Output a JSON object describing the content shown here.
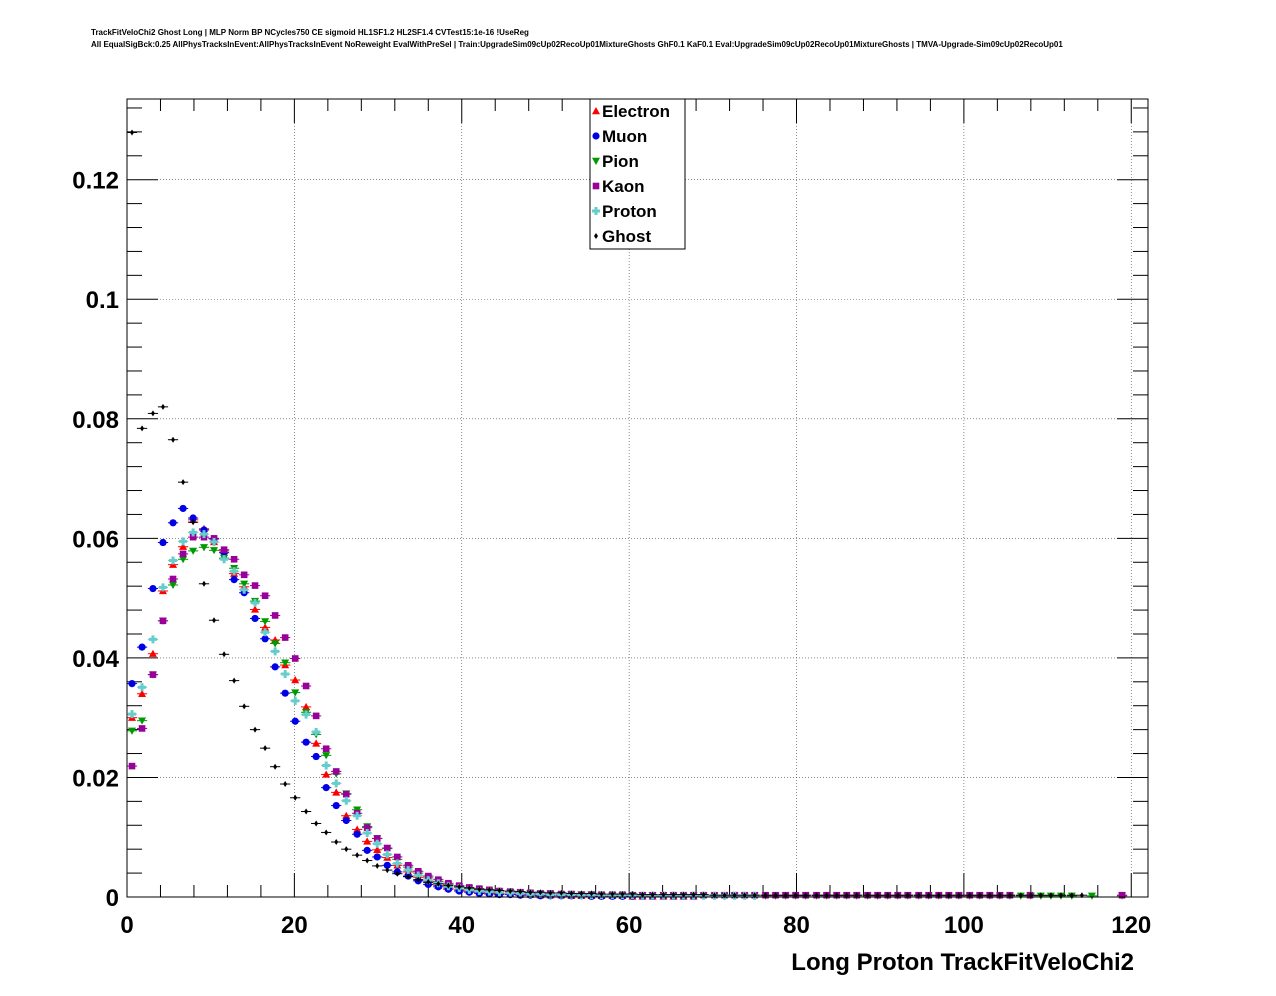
{
  "header": {
    "title_line1": "TrackFitVeloChi2 Ghost Long | MLP Norm BP NCycles750 CE sigmoid HL1SF1.2 HL2SF1.4 CVTest15:1e-16 !UseReg",
    "title_line2": "All EqualSigBck:0.25 AllPhysTracksInEvent:AllPhysTracksInEvent NoReweight EvalWithPreSel | Train:UpgradeSim09cUp02RecoUp01MixtureGhosts GhF0.1 KaF0.1 Eval:UpgradeSim09cUp02RecoUp01MixtureGhosts | TMVA-Upgrade-Sim09cUp02RecoUp01"
  },
  "chart_data": {
    "type": "scatter",
    "xlabel": "Long Proton TrackFitVeloChi2",
    "ylabel": "",
    "xlim": [
      0,
      122
    ],
    "ylim": [
      0,
      0.1335
    ],
    "x_ticks": [
      0,
      20,
      40,
      60,
      80,
      100,
      120
    ],
    "x_tick_labels": [
      "0",
      "20",
      "40",
      "60",
      "80",
      "100",
      "120"
    ],
    "y_ticks": [
      0,
      0.02,
      0.04,
      0.06,
      0.08,
      0.1,
      0.12
    ],
    "y_tick_labels": [
      "0",
      "0.02",
      "0.04",
      "0.06",
      "0.08",
      "0.1",
      "0.12"
    ],
    "grid": true,
    "legend_position": "top-center",
    "series": [
      {
        "name": "Electron",
        "color": "#ff0000",
        "marker": "triangle-up",
        "x": [
          0.6,
          1.8,
          3.1,
          4.3,
          5.5,
          6.7,
          7.9,
          9.2,
          10.4,
          11.6,
          12.8,
          14.0,
          15.3,
          16.5,
          17.7,
          18.9,
          20.1,
          21.4,
          22.6,
          23.8,
          25.0,
          26.2,
          27.5,
          28.7,
          29.9,
          31.1,
          32.3,
          33.6,
          34.8,
          36.0,
          37.2,
          38.4,
          39.7,
          40.9,
          42.1,
          43.3,
          44.5,
          45.8,
          47.0,
          48.2,
          49.4,
          50.6,
          51.9,
          53.1,
          54.3,
          55.5,
          56.7,
          58.0,
          59.2,
          60.4,
          61.6,
          62.8,
          64.1,
          65.3,
          66.5,
          67.7
        ],
        "y": [
          0.03,
          0.034,
          0.0407,
          0.0512,
          0.0556,
          0.0586,
          0.0631,
          0.0616,
          0.0594,
          0.0579,
          0.0541,
          0.0519,
          0.0481,
          0.0451,
          0.043,
          0.0388,
          0.0363,
          0.0318,
          0.0257,
          0.0205,
          0.0175,
          0.0136,
          0.0113,
          0.0093,
          0.0079,
          0.0066,
          0.0053,
          0.0042,
          0.0033,
          0.0024,
          0.0019,
          0.0015,
          0.0012,
          0.001,
          0.0008,
          0.0007,
          0.0006,
          0.0005,
          0.0004,
          0.0004,
          0.0003,
          0.0003,
          0.0003,
          0.0002,
          0.0002,
          0.0002,
          0.0002,
          0.0002,
          0.0002,
          0.0001,
          0.0001,
          0.0001,
          0.0001,
          0.0001,
          0.0001,
          0.0001
        ]
      },
      {
        "name": "Muon",
        "color": "#0000e6",
        "marker": "circle",
        "x": [
          0.6,
          1.8,
          3.1,
          4.3,
          5.5,
          6.7,
          7.9,
          9.2,
          10.4,
          11.6,
          12.8,
          14.0,
          15.3,
          16.5,
          17.7,
          18.9,
          20.1,
          21.4,
          22.6,
          23.8,
          25.0,
          26.2,
          27.5,
          28.7,
          29.9,
          31.1,
          32.3,
          33.6,
          34.8,
          36.0,
          37.2,
          38.4,
          39.7,
          40.9,
          42.1,
          43.3,
          44.5,
          45.8,
          47.0,
          48.2,
          49.4,
          50.6,
          51.9,
          53.1,
          54.3,
          55.5,
          56.7,
          58.0,
          59.2,
          60.4,
          61.6,
          62.8,
          64.1,
          65.3,
          66.5,
          67.7
        ],
        "y": [
          0.0357,
          0.0418,
          0.0516,
          0.0593,
          0.0626,
          0.065,
          0.0634,
          0.0614,
          0.0599,
          0.0576,
          0.0531,
          0.0509,
          0.0466,
          0.0432,
          0.0385,
          0.0341,
          0.0294,
          0.0259,
          0.0235,
          0.0183,
          0.0153,
          0.0128,
          0.0105,
          0.0078,
          0.0067,
          0.0053,
          0.0042,
          0.0035,
          0.0027,
          0.0021,
          0.0017,
          0.0013,
          0.001,
          0.0008,
          0.0006,
          0.0005,
          0.0004,
          0.0004,
          0.0003,
          0.0003,
          0.0002,
          0.0002,
          0.0002,
          0.0002,
          0.0002,
          0.0001,
          0.0001,
          0.0001,
          0.0001,
          0.0001,
          0.0001,
          0.0001,
          0.0001,
          0.0001,
          0.0001,
          0.0001
        ]
      },
      {
        "name": "Pion",
        "color": "#009900",
        "marker": "triangle-down",
        "x": [
          0.6,
          1.8,
          3.1,
          4.3,
          5.5,
          6.7,
          7.9,
          9.2,
          10.4,
          11.6,
          12.8,
          14.0,
          15.3,
          16.5,
          17.7,
          18.9,
          20.1,
          21.4,
          22.6,
          23.8,
          25.0,
          26.2,
          27.5,
          28.7,
          29.9,
          31.1,
          32.3,
          33.6,
          34.8,
          36.0,
          37.2,
          38.4,
          39.7,
          40.9,
          42.1,
          43.3,
          44.5,
          45.8,
          47.0,
          48.2,
          49.4,
          50.6,
          51.9,
          53.1,
          54.3,
          55.5,
          56.7,
          58.0,
          59.2,
          60.4,
          61.6,
          62.8,
          64.1,
          65.3,
          66.5,
          67.7,
          68.9,
          70.2,
          71.4,
          72.6,
          73.8,
          75.0,
          76.3,
          77.5,
          78.7,
          79.9,
          81.1,
          82.4,
          83.6,
          84.8,
          86.0,
          87.2,
          88.5,
          89.7,
          90.9,
          92.1,
          93.3,
          94.6,
          95.8,
          97.0,
          98.2,
          99.4,
          100.7,
          101.9,
          103.1,
          104.3,
          105.5,
          106.8,
          108.0,
          109.2,
          110.4,
          111.6,
          112.9,
          115.3,
          118.9
        ],
        "y": [
          0.0278,
          0.0295,
          0.0372,
          0.0462,
          0.0522,
          0.0565,
          0.0579,
          0.0585,
          0.058,
          0.0567,
          0.055,
          0.0524,
          0.0495,
          0.0461,
          0.0424,
          0.0392,
          0.0342,
          0.0309,
          0.0272,
          0.0237,
          0.0206,
          0.0173,
          0.0146,
          0.0118,
          0.0098,
          0.0081,
          0.0063,
          0.005,
          0.004,
          0.0032,
          0.0026,
          0.0021,
          0.0017,
          0.0014,
          0.0012,
          0.001,
          0.0009,
          0.0008,
          0.0007,
          0.0006,
          0.0005,
          0.0005,
          0.0004,
          0.0004,
          0.0004,
          0.0004,
          0.0003,
          0.0003,
          0.0003,
          0.0003,
          0.0003,
          0.0003,
          0.0003,
          0.0002,
          0.0002,
          0.0002,
          0.0002,
          0.0002,
          0.0002,
          0.0002,
          0.0002,
          0.0002,
          0.0002,
          0.0002,
          0.0002,
          0.0002,
          0.0002,
          0.0002,
          0.0002,
          0.0002,
          0.0002,
          0.0002,
          0.0002,
          0.0002,
          0.0002,
          0.0002,
          0.0002,
          0.0002,
          0.0002,
          0.0002,
          0.0002,
          0.0002,
          0.0002,
          0.0002,
          0.0002,
          0.0002,
          0.0002,
          0.0002,
          0.0002,
          0.0002,
          0.0002,
          0.0002,
          0.0002,
          0.0002,
          0.0002
        ]
      },
      {
        "name": "Kaon",
        "color": "#990099",
        "marker": "square",
        "x": [
          0.6,
          1.8,
          3.1,
          4.3,
          5.5,
          6.7,
          7.9,
          9.2,
          10.4,
          11.6,
          12.8,
          14.0,
          15.3,
          16.5,
          17.7,
          18.9,
          20.1,
          21.4,
          22.6,
          23.8,
          25.0,
          26.2,
          27.5,
          28.7,
          29.9,
          31.1,
          32.3,
          33.6,
          34.8,
          36.0,
          37.2,
          38.4,
          39.7,
          40.9,
          42.1,
          43.3,
          44.5,
          45.8,
          47.0,
          48.2,
          49.4,
          50.6,
          51.9,
          53.1,
          54.3,
          55.5,
          56.7,
          58.0,
          59.2,
          60.4,
          61.6,
          62.8,
          64.1,
          65.3,
          66.5,
          67.7,
          68.9,
          70.2,
          71.4,
          72.6,
          73.8,
          75.0,
          76.3,
          77.5,
          78.7,
          79.9,
          81.1,
          82.4,
          83.6,
          84.8,
          86.0,
          87.2,
          88.5,
          89.7,
          90.9,
          92.1,
          93.3,
          94.6,
          95.8,
          97.0,
          98.2,
          99.4,
          100.7,
          101.9,
          103.1,
          104.3,
          105.5,
          107.9,
          118.9
        ],
        "y": [
          0.0219,
          0.0282,
          0.0372,
          0.0462,
          0.0532,
          0.0574,
          0.0602,
          0.0602,
          0.06,
          0.0581,
          0.0565,
          0.0539,
          0.0521,
          0.0504,
          0.0471,
          0.0434,
          0.0399,
          0.0353,
          0.0303,
          0.0248,
          0.021,
          0.0172,
          0.014,
          0.0116,
          0.0098,
          0.0082,
          0.0067,
          0.0053,
          0.0043,
          0.0035,
          0.0029,
          0.0023,
          0.0019,
          0.0016,
          0.0014,
          0.0012,
          0.001,
          0.0009,
          0.0008,
          0.0007,
          0.0006,
          0.0006,
          0.0005,
          0.0005,
          0.0004,
          0.0004,
          0.0004,
          0.0004,
          0.0004,
          0.0003,
          0.0003,
          0.0003,
          0.0003,
          0.0003,
          0.0003,
          0.0003,
          0.0003,
          0.0003,
          0.0003,
          0.0003,
          0.0003,
          0.0003,
          0.0003,
          0.0003,
          0.0003,
          0.0003,
          0.0003,
          0.0003,
          0.0003,
          0.0003,
          0.0003,
          0.0003,
          0.0003,
          0.0003,
          0.0003,
          0.0003,
          0.0003,
          0.0003,
          0.0003,
          0.0003,
          0.0003,
          0.0003,
          0.0003,
          0.0003,
          0.0003,
          0.0003,
          0.0003,
          0.0003,
          0.0003
        ]
      },
      {
        "name": "Proton",
        "color": "#66cccc",
        "marker": "cross",
        "x": [
          0.6,
          1.8,
          3.1,
          4.3,
          5.5,
          6.7,
          7.9,
          9.2,
          10.4,
          11.6,
          12.8,
          14.0,
          15.3,
          16.5,
          17.7,
          18.9,
          20.1,
          21.4,
          22.6,
          23.8,
          25.0,
          26.2,
          27.5,
          28.7,
          29.9,
          31.1,
          32.3,
          33.6,
          34.8,
          36.0,
          37.2,
          38.4,
          39.7,
          40.9,
          42.1,
          43.3,
          44.5,
          45.8,
          47.0,
          48.2,
          49.4,
          50.6,
          51.9,
          53.1,
          54.3,
          55.5,
          56.7,
          58.0,
          59.2,
          60.4,
          61.6,
          62.8,
          64.1,
          65.3,
          66.5,
          67.7,
          68.9,
          70.2,
          71.4,
          72.6,
          73.8,
          75.0
        ],
        "y": [
          0.0306,
          0.0351,
          0.0431,
          0.0518,
          0.0563,
          0.0595,
          0.061,
          0.0607,
          0.0594,
          0.0565,
          0.0545,
          0.0514,
          0.0492,
          0.0443,
          0.0411,
          0.0373,
          0.0328,
          0.0305,
          0.0276,
          0.022,
          0.019,
          0.0161,
          0.0136,
          0.0107,
          0.0089,
          0.0071,
          0.0056,
          0.0045,
          0.0036,
          0.0028,
          0.0023,
          0.0018,
          0.0015,
          0.0012,
          0.001,
          0.0009,
          0.0008,
          0.0007,
          0.0006,
          0.0005,
          0.0005,
          0.0004,
          0.0004,
          0.0004,
          0.0003,
          0.0003,
          0.0003,
          0.0003,
          0.0003,
          0.0003,
          0.0002,
          0.0002,
          0.0002,
          0.0002,
          0.0002,
          0.0002,
          0.0002,
          0.0002,
          0.0002,
          0.0002,
          0.0002,
          0.0002
        ]
      },
      {
        "name": "Ghost",
        "color": "#000000",
        "marker": "star",
        "x": [
          0.6,
          1.8,
          3.1,
          4.3,
          5.5,
          6.7,
          7.9,
          9.2,
          10.4,
          11.6,
          12.8,
          14.0,
          15.3,
          16.5,
          17.7,
          18.9,
          20.1,
          21.4,
          22.6,
          23.8,
          25.0,
          26.2,
          27.5,
          28.7,
          29.9,
          31.1,
          32.3,
          33.6,
          34.8,
          36.0,
          37.2,
          38.4,
          39.7,
          40.9,
          42.1,
          43.3,
          44.5,
          45.8,
          47.0,
          48.2,
          49.4,
          50.6,
          51.9,
          53.1,
          54.3,
          55.5,
          56.7,
          58.0,
          59.2,
          60.4,
          61.6,
          62.8,
          64.1,
          65.3,
          66.5,
          67.7,
          68.9,
          70.2,
          71.4,
          72.6,
          73.8,
          75.0,
          76.3,
          77.5,
          78.7,
          79.9,
          81.1,
          82.4,
          83.6,
          84.8,
          86.0,
          87.2,
          88.5,
          89.7,
          90.9,
          92.1,
          93.3,
          94.6,
          95.8,
          97.0,
          98.2,
          99.4,
          100.7,
          101.9,
          103.1,
          104.3,
          105.5,
          106.8,
          108.0,
          109.2,
          110.4,
          111.6,
          112.9,
          114.1
        ],
        "y": [
          0.1279,
          0.0784,
          0.0809,
          0.082,
          0.0765,
          0.0694,
          0.0627,
          0.0524,
          0.0463,
          0.0406,
          0.0362,
          0.0319,
          0.028,
          0.0249,
          0.0218,
          0.0189,
          0.0166,
          0.0143,
          0.0123,
          0.0108,
          0.0092,
          0.008,
          0.007,
          0.0061,
          0.0052,
          0.0045,
          0.0039,
          0.0034,
          0.0029,
          0.0025,
          0.0022,
          0.0019,
          0.0017,
          0.0015,
          0.0013,
          0.0012,
          0.0011,
          0.001,
          0.0009,
          0.0008,
          0.0008,
          0.0007,
          0.0007,
          0.0006,
          0.0006,
          0.0006,
          0.0005,
          0.0005,
          0.0005,
          0.0005,
          0.0004,
          0.0004,
          0.0004,
          0.0004,
          0.0004,
          0.0004,
          0.0004,
          0.0003,
          0.0003,
          0.0003,
          0.0003,
          0.0003,
          0.0003,
          0.0003,
          0.0003,
          0.0003,
          0.0003,
          0.0003,
          0.0003,
          0.0003,
          0.0003,
          0.0003,
          0.0003,
          0.0003,
          0.0003,
          0.0003,
          0.0003,
          0.0003,
          0.0003,
          0.0003,
          0.0003,
          0.0003,
          0.0003,
          0.0003,
          0.0003,
          0.0003,
          0.0003,
          0.0003,
          0.0003,
          0.0003,
          0.0003,
          0.0003,
          0.0003,
          0.0003
        ]
      }
    ]
  }
}
